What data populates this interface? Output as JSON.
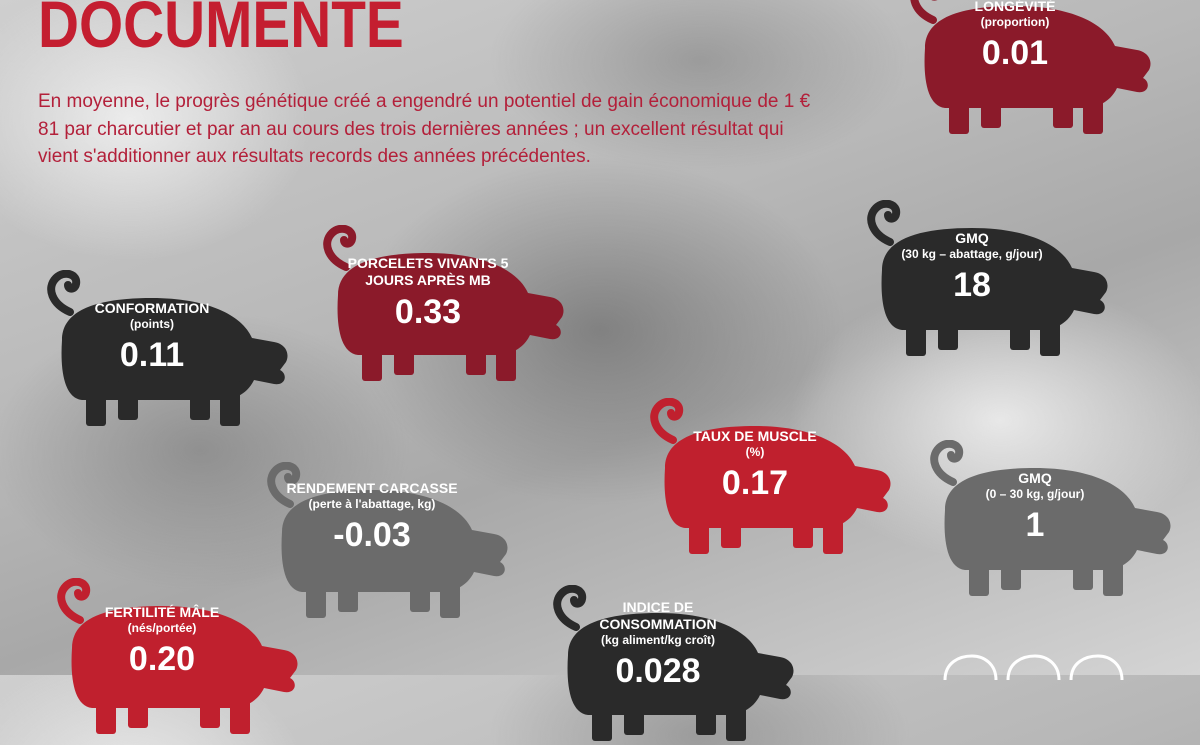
{
  "title": "DOCUMENTÉ",
  "intro": "En moyenne, le progrès génétique créé a engendré un potentiel de gain économique de 1 € 81 par charcutier et par an au cours des trois dernières années ; un excellent résultat qui vient s'additionner aux résultats records des années précédentes.",
  "colors": {
    "title": "#c41e30",
    "text": "#b3203a",
    "dark_red": "#8b1a2a",
    "red": "#c0202e",
    "black": "#2a2a2a",
    "gray": "#6b6b6b"
  },
  "pigs": [
    {
      "label": "LONGÉVITÉ",
      "unit": "(proportion)",
      "value": "0.01",
      "color": "#8b1a2a"
    },
    {
      "label": "PORCELETS VIVANTS 5 JOURS APRÈS MB",
      "unit": "",
      "value": "0.33",
      "color": "#8b1a2a"
    },
    {
      "label": "CONFORMATION",
      "unit": "(points)",
      "value": "0.11",
      "color": "#2a2a2a"
    },
    {
      "label": "GMQ",
      "unit": "(30 kg – abattage, g/jour)",
      "value": "18",
      "color": "#2a2a2a"
    },
    {
      "label": "TAUX DE MUSCLE",
      "unit": "(%)",
      "value": "0.17",
      "color": "#c0202e"
    },
    {
      "label": "GMQ",
      "unit": "(0 – 30 kg, g/jour)",
      "value": "1",
      "color": "#6b6b6b"
    },
    {
      "label": "RENDEMENT CARCASSE",
      "unit": "(perte à l'abattage, kg)",
      "value": "-0.03",
      "color": "#6b6b6b"
    },
    {
      "label": "FERTILITÉ MÂLE",
      "unit": "(nés/portée)",
      "value": "0.20",
      "color": "#c0202e"
    },
    {
      "label": "INDICE DE CONSOMMATION",
      "unit": "(kg aliment/kg croît)",
      "value": "0.028",
      "color": "#2a2a2a"
    }
  ]
}
